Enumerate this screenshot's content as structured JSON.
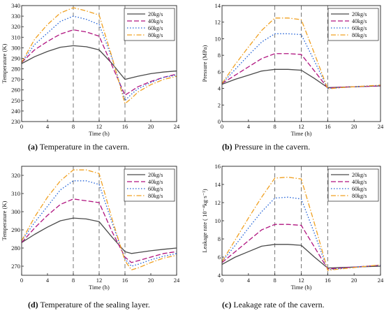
{
  "chart_data": [
    {
      "type": "line",
      "caption_tag": "(a)",
      "caption": " Temperature in the cavern.",
      "xlabel": "Time (h)",
      "ylabel": "Temperature (K)",
      "xlim": [
        0,
        24
      ],
      "ylim": [
        230,
        340
      ],
      "xticks": [
        0,
        4,
        8,
        12,
        16,
        20,
        24
      ],
      "yticks": [
        230,
        240,
        250,
        260,
        270,
        280,
        290,
        300,
        310,
        320,
        330,
        340
      ],
      "vlines": [
        8,
        12,
        16
      ],
      "grid": false,
      "legend_position": "top-right",
      "series": [
        {
          "name": "20kg/s",
          "x": [
            0,
            2,
            4,
            6,
            8,
            10,
            12,
            14,
            16,
            17,
            18,
            20,
            22,
            24
          ],
          "values": [
            285,
            291.5,
            296.5,
            300.5,
            302,
            301,
            298,
            285,
            270,
            271.5,
            273,
            275.5,
            277,
            278
          ]
        },
        {
          "name": "40kg/s",
          "x": [
            0,
            2,
            4,
            6,
            8,
            10,
            12,
            14,
            16,
            17,
            18,
            20,
            22,
            24
          ],
          "values": [
            286,
            298,
            306,
            313,
            317,
            315,
            311,
            283,
            255,
            259,
            263,
            268,
            272,
            275
          ]
        },
        {
          "name": "60kg/s",
          "x": [
            0,
            2,
            4,
            6,
            8,
            10,
            12,
            14,
            16,
            17,
            18,
            20,
            22,
            24
          ],
          "values": [
            286,
            303,
            314,
            325,
            330,
            327,
            322,
            290,
            250,
            256,
            261,
            267,
            272,
            274
          ]
        },
        {
          "name": "80kg/s",
          "x": [
            0,
            2,
            4,
            6,
            8,
            10,
            12,
            14,
            16,
            17,
            18,
            20,
            22,
            24
          ],
          "values": [
            286,
            308,
            322,
            333,
            338,
            335,
            331,
            291,
            247,
            252,
            258,
            265,
            270,
            273
          ]
        }
      ]
    },
    {
      "type": "line",
      "caption_tag": "(b)",
      "caption": " Pressure in the cavern.",
      "xlabel": "Time (h)",
      "ylabel": "Pressure (MPa)",
      "xlim": [
        0,
        24
      ],
      "ylim": [
        0,
        14
      ],
      "xticks": [
        0,
        4,
        8,
        12,
        16,
        20,
        24
      ],
      "yticks": [
        0,
        2,
        4,
        6,
        8,
        10,
        12,
        14
      ],
      "vlines": [
        8,
        12,
        16
      ],
      "grid": false,
      "legend_position": "top-right",
      "series": [
        {
          "name": "20kg/s",
          "x": [
            0,
            2,
            4,
            6,
            8,
            10,
            12,
            14,
            16,
            18,
            20,
            22,
            24
          ],
          "values": [
            4.5,
            5.1,
            5.6,
            6.1,
            6.3,
            6.3,
            6.2,
            5.2,
            4.1,
            4.15,
            4.2,
            4.25,
            4.3
          ]
        },
        {
          "name": "40kg/s",
          "x": [
            0,
            2,
            4,
            6,
            8,
            10,
            12,
            14,
            16,
            18,
            20,
            22,
            24
          ],
          "values": [
            4.6,
            5.6,
            6.6,
            7.6,
            8.2,
            8.2,
            8.1,
            6.1,
            4.05,
            4.15,
            4.2,
            4.25,
            4.3
          ]
        },
        {
          "name": "60kg/s",
          "x": [
            0,
            2,
            4,
            6,
            8,
            10,
            12,
            14,
            16,
            18,
            20,
            22,
            24
          ],
          "values": [
            4.6,
            6.3,
            8.0,
            9.6,
            10.6,
            10.6,
            10.5,
            7.3,
            4.0,
            4.1,
            4.2,
            4.3,
            4.35
          ]
        },
        {
          "name": "80kg/s",
          "x": [
            0,
            2,
            4,
            6,
            8,
            10,
            12,
            14,
            16,
            18,
            20,
            22,
            24
          ],
          "values": [
            4.6,
            6.9,
            9.0,
            11.0,
            12.5,
            12.5,
            12.3,
            8.2,
            3.95,
            4.1,
            4.2,
            4.3,
            4.4
          ]
        }
      ]
    },
    {
      "type": "line",
      "caption_tag": "(d)",
      "caption": " Temperature of the sealing layer.",
      "xlabel": "Time (h)",
      "ylabel": "Temperature (K)",
      "xlim": [
        0,
        24
      ],
      "ylim": [
        265,
        325
      ],
      "xticks": [
        0,
        4,
        8,
        12,
        16,
        20,
        24
      ],
      "yticks": [
        270,
        280,
        290,
        300,
        310,
        320
      ],
      "vlines": [
        8,
        12,
        16
      ],
      "grid": false,
      "legend_position": "top-right",
      "series": [
        {
          "name": "20kg/s",
          "x": [
            0,
            2,
            4,
            6,
            8,
            10,
            12,
            14,
            16,
            17,
            18,
            20,
            22,
            24
          ],
          "values": [
            283,
            287.5,
            291.5,
            295,
            296.5,
            296,
            294.5,
            286,
            278,
            277,
            277.5,
            278.5,
            279.3,
            280
          ]
        },
        {
          "name": "40kg/s",
          "x": [
            0,
            2,
            4,
            6,
            8,
            10,
            12,
            14,
            16,
            17,
            18,
            20,
            22,
            24
          ],
          "values": [
            283,
            291,
            298,
            304,
            307,
            306,
            305,
            289,
            275,
            272,
            273,
            275,
            277,
            278
          ]
        },
        {
          "name": "60kg/s",
          "x": [
            0,
            2,
            4,
            6,
            8,
            10,
            12,
            14,
            16,
            17,
            18,
            20,
            22,
            24
          ],
          "values": [
            284,
            294,
            303,
            312,
            317,
            317,
            315,
            294,
            274,
            270,
            271,
            273.5,
            275.5,
            277
          ]
        },
        {
          "name": "80kg/s",
          "x": [
            0,
            2,
            4,
            6,
            8,
            10,
            12,
            14,
            16,
            17,
            18,
            20,
            22,
            24
          ],
          "values": [
            284,
            297,
            308,
            317,
            323,
            323,
            321,
            296,
            273,
            268,
            269,
            272,
            274.5,
            276
          ]
        }
      ]
    },
    {
      "type": "line",
      "caption_tag": "(c)",
      "caption": " Leakage rate of the cavern.",
      "xlabel": "Time (h)",
      "ylabel": "Leakage rate ( 10⁻⁴kg·s⁻¹)",
      "xlim": [
        0,
        24
      ],
      "ylim": [
        4,
        16
      ],
      "xticks": [
        0,
        4,
        8,
        12,
        16,
        20,
        24
      ],
      "yticks": [
        4,
        6,
        8,
        10,
        12,
        14,
        16
      ],
      "vlines": [
        8,
        12,
        16
      ],
      "grid": false,
      "legend_position": "top-right",
      "series": [
        {
          "name": "20kg/s",
          "x": [
            0,
            2,
            4,
            6,
            8,
            10,
            12,
            14,
            16,
            18,
            20,
            22,
            24
          ],
          "values": [
            5.2,
            6.0,
            6.6,
            7.2,
            7.4,
            7.4,
            7.3,
            6.0,
            4.8,
            4.85,
            4.9,
            4.95,
            5.0
          ]
        },
        {
          "name": "40kg/s",
          "x": [
            0,
            2,
            4,
            6,
            8,
            10,
            12,
            14,
            16,
            18,
            20,
            22,
            24
          ],
          "values": [
            5.4,
            6.6,
            7.8,
            9.0,
            9.6,
            9.6,
            9.5,
            7.1,
            4.7,
            4.8,
            4.9,
            5.0,
            5.1
          ]
        },
        {
          "name": "60kg/s",
          "x": [
            0,
            2,
            4,
            6,
            8,
            10,
            12,
            14,
            16,
            18,
            20,
            22,
            24
          ],
          "values": [
            5.5,
            7.3,
            9.2,
            11.0,
            12.5,
            12.6,
            12.4,
            8.6,
            4.6,
            4.75,
            4.9,
            5.0,
            5.1
          ]
        },
        {
          "name": "80kg/s",
          "x": [
            0,
            2,
            4,
            6,
            8,
            10,
            12,
            14,
            16,
            18,
            20,
            22,
            24
          ],
          "values": [
            5.5,
            7.9,
            10.3,
            12.6,
            14.7,
            14.8,
            14.6,
            9.7,
            4.55,
            4.7,
            4.85,
            5.0,
            5.15
          ]
        }
      ]
    }
  ],
  "series_colors": [
    "#4a4a4a",
    "#b0137f",
    "#1e5fd6",
    "#f0a020"
  ],
  "series_dash": [
    "none",
    "7,3",
    "1.5,2.5",
    "7,2.5,1.5,2.5"
  ]
}
